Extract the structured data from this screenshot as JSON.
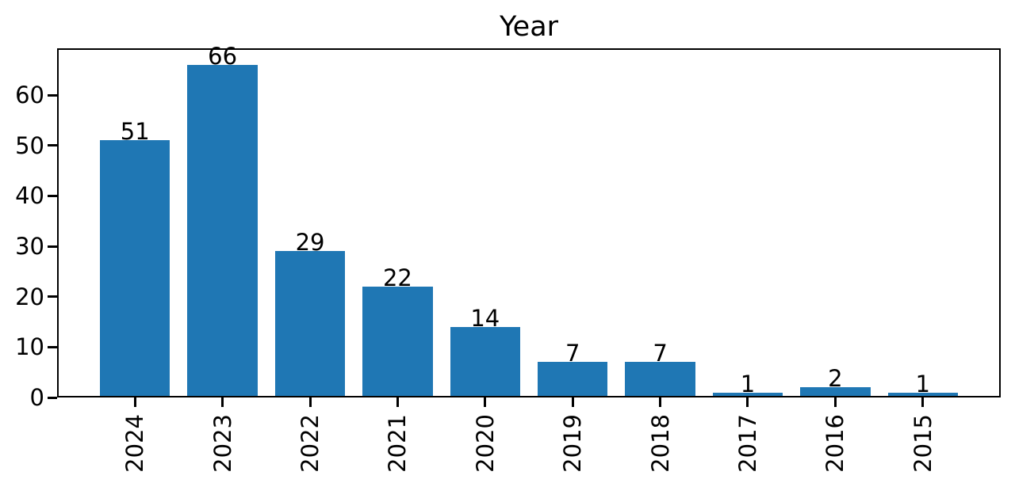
{
  "chart_data": {
    "type": "bar",
    "title": "Year",
    "categories": [
      "2024",
      "2023",
      "2022",
      "2021",
      "2020",
      "2019",
      "2018",
      "2017",
      "2016",
      "2015"
    ],
    "values": [
      51,
      66,
      29,
      22,
      14,
      7,
      7,
      1,
      2,
      1
    ],
    "bar_labels": [
      51,
      66,
      29,
      22,
      14,
      7,
      7,
      1,
      2,
      1
    ],
    "xlabel": "",
    "ylabel": "",
    "yticks": [
      0,
      10,
      20,
      30,
      40,
      50,
      60
    ],
    "ylim": [
      0,
      69.3
    ],
    "x_tick_rotation": 90,
    "grid": false,
    "legend": null,
    "bar_color": "#1f77b4",
    "axis_color": "#000000",
    "text_color": "#000000",
    "background_color": "#ffffff"
  }
}
